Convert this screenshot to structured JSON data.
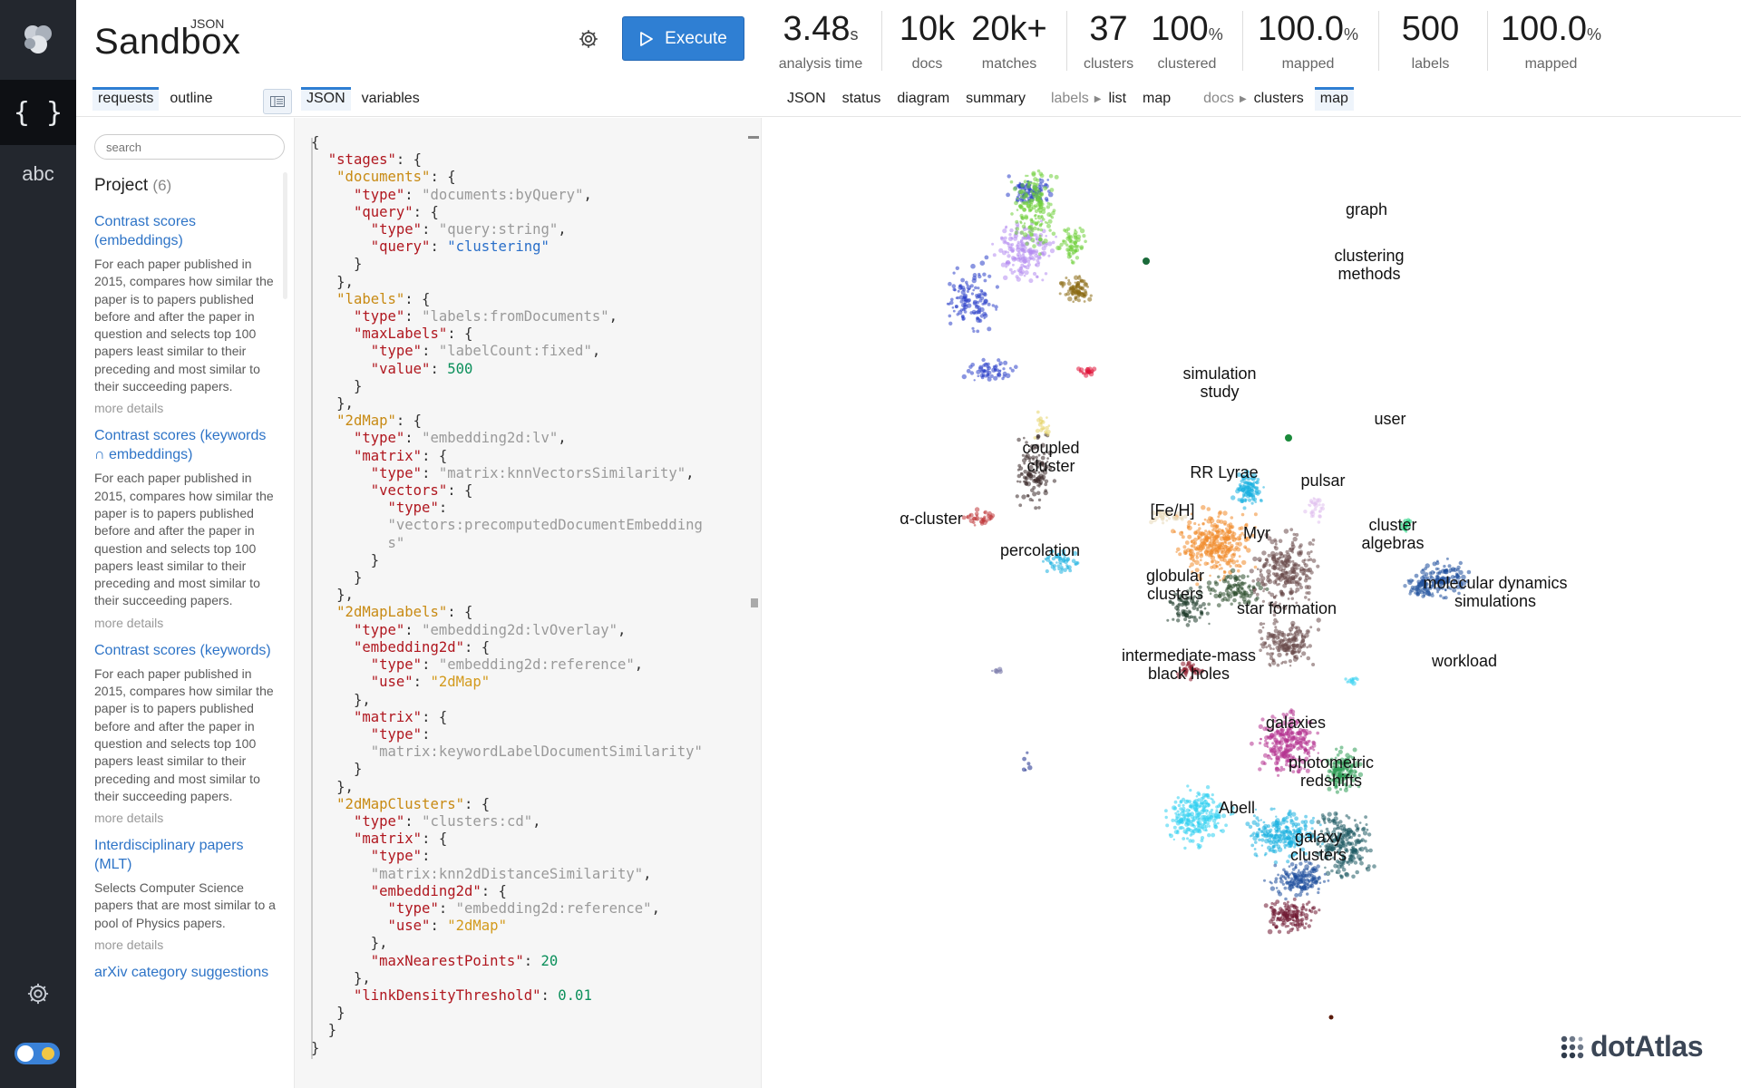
{
  "rail": {
    "json_glyph": "{ }",
    "abc_glyph": "abc"
  },
  "brand": {
    "main": "Sandbox",
    "sup": "JSON"
  },
  "execute": {
    "label": "Execute"
  },
  "stats": [
    {
      "value": "3.48",
      "unit": "s",
      "label": "analysis time"
    },
    {
      "value": "10k",
      "unit": "",
      "label": "docs"
    },
    {
      "value": "20k+",
      "unit": "",
      "label": "matches"
    },
    {
      "value": "37",
      "unit": "",
      "label": "clusters"
    },
    {
      "value": "100",
      "unit": "%",
      "label": "clustered"
    },
    {
      "value": "100.0",
      "unit": "%",
      "label": "mapped"
    },
    {
      "value": "500",
      "unit": "",
      "label": "labels"
    },
    {
      "value": "100.0",
      "unit": "%",
      "label": "mapped"
    }
  ],
  "left_tabs": {
    "requests": "requests",
    "outline": "outline"
  },
  "editor_tabs": {
    "json": "JSON",
    "variables": "variables"
  },
  "result_tabs": {
    "json": "JSON",
    "status": "status",
    "diagram": "diagram",
    "summary": "summary",
    "labels": "labels",
    "labels_list": "list",
    "labels_map": "map",
    "docs": "docs",
    "docs_clusters": "clusters",
    "docs_map": "map"
  },
  "sidebar": {
    "search_placeholder": "search",
    "project_title": "Project",
    "project_count": "(6)",
    "items": [
      {
        "title": "Contrast scores (embeddings)",
        "desc": "For each paper published in 2015, compares how similar the paper is to papers published before and after the paper in question and selects top 100 papers least similar to their preceding and most similar to their succeeding papers.",
        "more": "more details"
      },
      {
        "title": "Contrast scores (keywords ∩ embeddings)",
        "desc": "For each paper published in 2015, compares how similar the paper is to papers published before and after the paper in question and selects top 100 papers least similar to their preceding and most similar to their succeeding papers.",
        "more": "more details"
      },
      {
        "title": "Contrast scores (keywords)",
        "desc": "For each paper published in 2015, compares how similar the paper is to papers published before and after the paper in question and selects top 100 papers least similar to their preceding and most similar to their succeeding papers.",
        "more": "more details"
      },
      {
        "title": "Interdisciplinary papers (MLT)",
        "desc": "Selects Computer Science papers that are most similar to a pool of Physics papers.",
        "more": "more details"
      },
      {
        "title": "arXiv category suggestions",
        "desc": "",
        "more": ""
      }
    ]
  },
  "code_lines": [
    [
      [
        "p",
        "{"
      ]
    ],
    [
      [
        "p",
        "  "
      ],
      [
        "k",
        "\"stages\""
      ],
      [
        "p",
        ": {"
      ]
    ],
    [
      [
        "p",
        "   "
      ],
      [
        "ko",
        "\"documents\""
      ],
      [
        "p",
        ": {"
      ]
    ],
    [
      [
        "p",
        "     "
      ],
      [
        "k",
        "\"type\""
      ],
      [
        "p",
        ": "
      ],
      [
        "s",
        "\"documents:byQuery\""
      ],
      [
        "p",
        ","
      ]
    ],
    [
      [
        "p",
        "     "
      ],
      [
        "k",
        "\"query\""
      ],
      [
        "p",
        ": {"
      ]
    ],
    [
      [
        "p",
        "       "
      ],
      [
        "k",
        "\"type\""
      ],
      [
        "p",
        ": "
      ],
      [
        "s",
        "\"query:string\""
      ],
      [
        "p",
        ","
      ]
    ],
    [
      [
        "p",
        "       "
      ],
      [
        "k",
        "\"query\""
      ],
      [
        "p",
        ": "
      ],
      [
        "sb",
        "\"clustering\""
      ]
    ],
    [
      [
        "p",
        "     }"
      ]
    ],
    [
      [
        "p",
        "   },"
      ]
    ],
    [
      [
        "p",
        "   "
      ],
      [
        "ko",
        "\"labels\""
      ],
      [
        "p",
        ": {"
      ]
    ],
    [
      [
        "p",
        "     "
      ],
      [
        "k",
        "\"type\""
      ],
      [
        "p",
        ": "
      ],
      [
        "s",
        "\"labels:fromDocuments\""
      ],
      [
        "p",
        ","
      ]
    ],
    [
      [
        "p",
        "     "
      ],
      [
        "k",
        "\"maxLabels\""
      ],
      [
        "p",
        ": {"
      ]
    ],
    [
      [
        "p",
        "       "
      ],
      [
        "k",
        "\"type\""
      ],
      [
        "p",
        ": "
      ],
      [
        "s",
        "\"labelCount:fixed\""
      ],
      [
        "p",
        ","
      ]
    ],
    [
      [
        "p",
        "       "
      ],
      [
        "k",
        "\"value\""
      ],
      [
        "p",
        ": "
      ],
      [
        "n",
        "500"
      ]
    ],
    [
      [
        "p",
        "     }"
      ]
    ],
    [
      [
        "p",
        "   },"
      ]
    ],
    [
      [
        "p",
        "   "
      ],
      [
        "ko",
        "\"2dMap\""
      ],
      [
        "p",
        ": {"
      ]
    ],
    [
      [
        "p",
        "     "
      ],
      [
        "k",
        "\"type\""
      ],
      [
        "p",
        ": "
      ],
      [
        "s",
        "\"embedding2d:lv\""
      ],
      [
        "p",
        ","
      ]
    ],
    [
      [
        "p",
        "     "
      ],
      [
        "k",
        "\"matrix\""
      ],
      [
        "p",
        ": {"
      ]
    ],
    [
      [
        "p",
        "       "
      ],
      [
        "k",
        "\"type\""
      ],
      [
        "p",
        ": "
      ],
      [
        "s",
        "\"matrix:knnVectorsSimilarity\""
      ],
      [
        "p",
        ","
      ]
    ],
    [
      [
        "p",
        "       "
      ],
      [
        "k",
        "\"vectors\""
      ],
      [
        "p",
        ": {"
      ]
    ],
    [
      [
        "p",
        "         "
      ],
      [
        "k",
        "\"type\""
      ],
      [
        "p",
        ":"
      ]
    ],
    [
      [
        "p",
        "         "
      ],
      [
        "s",
        "\"vectors:precomputedDocumentEmbedding"
      ]
    ],
    [
      [
        "p",
        "         "
      ],
      [
        "s",
        "s\""
      ]
    ],
    [
      [
        "p",
        "       }"
      ]
    ],
    [
      [
        "p",
        "     }"
      ]
    ],
    [
      [
        "p",
        "   },"
      ]
    ],
    [
      [
        "p",
        "   "
      ],
      [
        "ko",
        "\"2dMapLabels\""
      ],
      [
        "p",
        ": {"
      ]
    ],
    [
      [
        "p",
        "     "
      ],
      [
        "k",
        "\"type\""
      ],
      [
        "p",
        ": "
      ],
      [
        "s",
        "\"embedding2d:lvOverlay\""
      ],
      [
        "p",
        ","
      ]
    ],
    [
      [
        "p",
        "     "
      ],
      [
        "k",
        "\"embedding2d\""
      ],
      [
        "p",
        ": {"
      ]
    ],
    [
      [
        "p",
        "       "
      ],
      [
        "k",
        "\"type\""
      ],
      [
        "p",
        ": "
      ],
      [
        "s",
        "\"embedding2d:reference\""
      ],
      [
        "p",
        ","
      ]
    ],
    [
      [
        "p",
        "       "
      ],
      [
        "k",
        "\"use\""
      ],
      [
        "p",
        ": "
      ],
      [
        "so",
        "\"2dMap\""
      ]
    ],
    [
      [
        "p",
        "     },"
      ]
    ],
    [
      [
        "p",
        "     "
      ],
      [
        "k",
        "\"matrix\""
      ],
      [
        "p",
        ": {"
      ]
    ],
    [
      [
        "p",
        "       "
      ],
      [
        "k",
        "\"type\""
      ],
      [
        "p",
        ":"
      ]
    ],
    [
      [
        "p",
        "       "
      ],
      [
        "s",
        "\"matrix:keywordLabelDocumentSimilarity\""
      ]
    ],
    [
      [
        "p",
        "     }"
      ]
    ],
    [
      [
        "p",
        "   },"
      ]
    ],
    [
      [
        "p",
        "   "
      ],
      [
        "ko",
        "\"2dMapClusters\""
      ],
      [
        "p",
        ": {"
      ]
    ],
    [
      [
        "p",
        "     "
      ],
      [
        "k",
        "\"type\""
      ],
      [
        "p",
        ": "
      ],
      [
        "s",
        "\"clusters:cd\""
      ],
      [
        "p",
        ","
      ]
    ],
    [
      [
        "p",
        "     "
      ],
      [
        "k",
        "\"matrix\""
      ],
      [
        "p",
        ": {"
      ]
    ],
    [
      [
        "p",
        "       "
      ],
      [
        "k",
        "\"type\""
      ],
      [
        "p",
        ":"
      ]
    ],
    [
      [
        "p",
        "       "
      ],
      [
        "s",
        "\"matrix:knn2dDistanceSimilarity\""
      ],
      [
        "p",
        ","
      ]
    ],
    [
      [
        "p",
        "       "
      ],
      [
        "k",
        "\"embedding2d\""
      ],
      [
        "p",
        ": {"
      ]
    ],
    [
      [
        "p",
        "         "
      ],
      [
        "k",
        "\"type\""
      ],
      [
        "p",
        ": "
      ],
      [
        "s",
        "\"embedding2d:reference\""
      ],
      [
        "p",
        ","
      ]
    ],
    [
      [
        "p",
        "         "
      ],
      [
        "k",
        "\"use\""
      ],
      [
        "p",
        ": "
      ],
      [
        "so",
        "\"2dMap\""
      ]
    ],
    [
      [
        "p",
        "       },"
      ]
    ],
    [
      [
        "p",
        "       "
      ],
      [
        "k",
        "\"maxNearestPoints\""
      ],
      [
        "p",
        ": "
      ],
      [
        "n",
        "20"
      ]
    ],
    [
      [
        "p",
        "     },"
      ]
    ],
    [
      [
        "p",
        "     "
      ],
      [
        "k",
        "\"linkDensityThreshold\""
      ],
      [
        "p",
        ": "
      ],
      [
        "n",
        "0.01"
      ]
    ],
    [
      [
        "p",
        "   }"
      ]
    ],
    [
      [
        "p",
        "  }"
      ]
    ],
    [
      [
        "p",
        "}"
      ]
    ]
  ],
  "map": {
    "labels": [
      "graph",
      "clustering methods",
      "simulation study",
      "user",
      "coupled cluster",
      "α-cluster",
      "percolation",
      "RR Lyrae",
      "pulsar",
      "[Fe/H]",
      "Myr",
      "cluster algebras",
      "globular clusters",
      "star formation",
      "molecular dynamics simulations",
      "intermediate-mass black holes",
      "workload",
      "galaxies",
      "photometric redshifts",
      "Abell",
      "galaxy clusters"
    ],
    "colors": {
      "graph": "#2b3fc9",
      "clustering": "#b48cf0",
      "green": "#6fcf3a",
      "olive": "#8a6a12",
      "orange": "#f08a2a",
      "cyan": "#1ab0e0",
      "magenta": "#b4338f",
      "brown": "#6a4a4a",
      "teal": "#1d5a63",
      "darkred": "#6e1530",
      "dark": "#3a2a2a",
      "yellow": "#e6d36a",
      "pink": "#e0c0ee",
      "navy": "#1a4a9a",
      "red": "#c0383a",
      "lightcyan": "#30d0f0"
    },
    "watermark": "dotAtlas"
  }
}
